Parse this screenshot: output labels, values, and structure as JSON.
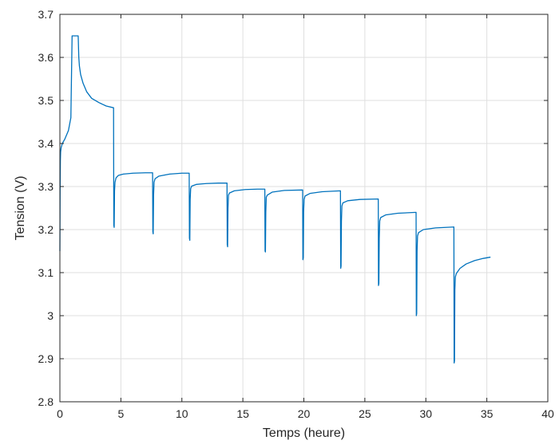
{
  "chart_data": {
    "type": "line",
    "title": "",
    "xlabel": "Temps (heure)",
    "ylabel": "Tension (V)",
    "xlim": [
      0,
      40
    ],
    "ylim": [
      2.8,
      3.7
    ],
    "xticks": [
      0,
      5,
      10,
      15,
      20,
      25,
      30,
      35,
      40
    ],
    "yticks": [
      2.8,
      2.9,
      3.0,
      3.1,
      3.2,
      3.3,
      3.4,
      3.5,
      3.6,
      3.7
    ],
    "xtick_labels": [
      "0",
      "5",
      "10",
      "15",
      "20",
      "25",
      "30",
      "35",
      "40"
    ],
    "ytick_labels": [
      "2.8",
      "2.9",
      "3",
      "3.1",
      "3.2",
      "3.3",
      "3.4",
      "3.5",
      "3.6",
      "3.7"
    ],
    "grid": true,
    "legend": "none",
    "color": "#0072bd",
    "series": [
      {
        "x": [
          0.0,
          0.02,
          0.04,
          0.06,
          0.1,
          0.2,
          0.4,
          0.7,
          0.9,
          1.0,
          1.05,
          1.5,
          1.55,
          1.6,
          1.7,
          1.9,
          2.2,
          2.6,
          3.2,
          3.8,
          4.4,
          4.42,
          4.45,
          4.48,
          4.52,
          4.6,
          4.8,
          5.2,
          6.0,
          7.0,
          7.6,
          7.62,
          7.65,
          7.68,
          7.72,
          7.8,
          8.1,
          9.0,
          10.0,
          10.6,
          10.62,
          10.65,
          10.68,
          10.72,
          10.8,
          11.2,
          12.0,
          13.0,
          13.7,
          13.72,
          13.75,
          13.78,
          13.82,
          13.9,
          14.3,
          15.2,
          16.2,
          16.8,
          16.82,
          16.85,
          16.88,
          16.92,
          17.0,
          17.4,
          18.4,
          19.9,
          19.92,
          19.95,
          19.98,
          20.02,
          20.1,
          20.5,
          21.5,
          23.0,
          23.02,
          23.05,
          23.08,
          23.12,
          23.2,
          23.6,
          24.6,
          26.1,
          26.12,
          26.15,
          26.18,
          26.22,
          26.3,
          26.7,
          27.7,
          29.2,
          29.22,
          29.25,
          29.28,
          29.32,
          29.4,
          29.8,
          30.8,
          32.3,
          32.32,
          32.35,
          32.38,
          32.42,
          32.5,
          32.8,
          33.3,
          34.0,
          34.7,
          35.3
        ],
        "y": [
          3.15,
          3.3,
          3.36,
          3.38,
          3.39,
          3.4,
          3.41,
          3.43,
          3.46,
          3.65,
          3.65,
          3.65,
          3.6,
          3.58,
          3.56,
          3.54,
          3.52,
          3.505,
          3.495,
          3.487,
          3.483,
          3.21,
          3.205,
          3.29,
          3.31,
          3.32,
          3.326,
          3.329,
          3.331,
          3.332,
          3.332,
          3.195,
          3.19,
          3.28,
          3.31,
          3.318,
          3.324,
          3.329,
          3.331,
          3.331,
          3.18,
          3.175,
          3.27,
          3.295,
          3.301,
          3.305,
          3.307,
          3.308,
          3.308,
          3.165,
          3.16,
          3.25,
          3.28,
          3.285,
          3.29,
          3.293,
          3.294,
          3.294,
          3.15,
          3.148,
          3.24,
          3.275,
          3.28,
          3.287,
          3.291,
          3.292,
          3.13,
          3.135,
          3.24,
          3.27,
          3.278,
          3.284,
          3.288,
          3.29,
          3.11,
          3.115,
          3.22,
          3.255,
          3.262,
          3.267,
          3.27,
          3.271,
          3.07,
          3.075,
          3.18,
          3.22,
          3.228,
          3.234,
          3.238,
          3.24,
          3.0,
          3.005,
          3.15,
          3.185,
          3.193,
          3.2,
          3.204,
          3.206,
          2.89,
          2.895,
          3.06,
          3.09,
          3.098,
          3.11,
          3.12,
          3.128,
          3.133,
          3.136
        ]
      }
    ]
  }
}
